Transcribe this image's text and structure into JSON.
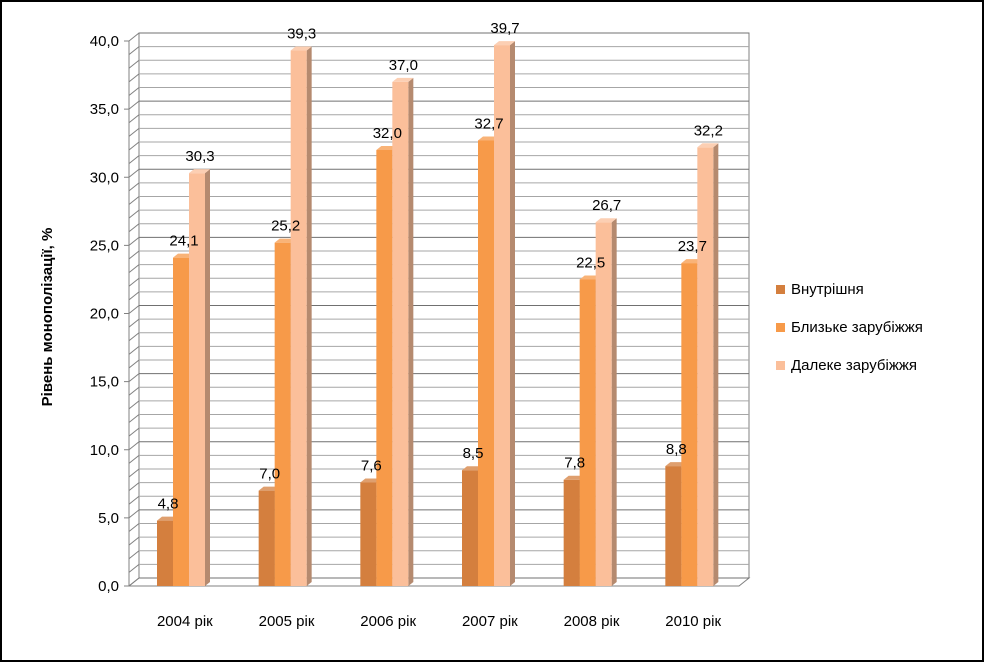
{
  "chart_data": {
    "type": "bar",
    "title": "",
    "xlabel": "",
    "ylabel": "Рівень монополізації, %",
    "ylim": [
      0,
      40
    ],
    "y_ticks": [
      "0,0",
      "5,0",
      "10,0",
      "15,0",
      "20,0",
      "25,0",
      "30,0",
      "35,0",
      "40,0"
    ],
    "categories": [
      "2004 рік",
      "2005 рік",
      "2006 рік",
      "2007 рік",
      "2008 рік",
      "2010 рік"
    ],
    "series": [
      {
        "name": "Внутрішня",
        "color": "#d47f3e",
        "values": [
          4.8,
          7.0,
          7.6,
          8.5,
          7.8,
          8.8
        ],
        "labels": [
          "4,8",
          "7,0",
          "7,6",
          "8,5",
          "7,8",
          "8,8"
        ]
      },
      {
        "name": "Близьке зарубіжжя",
        "color": "#f79a49",
        "values": [
          24.1,
          25.2,
          32.0,
          32.7,
          22.5,
          23.7
        ],
        "labels": [
          "24,1",
          "25,2",
          "32,0",
          "32,7",
          "22,5",
          "23,7"
        ]
      },
      {
        "name": "Далеке зарубіжжя",
        "color": "#fbbf9a",
        "values": [
          30.3,
          39.3,
          37.0,
          39.7,
          26.7,
          32.2
        ],
        "labels": [
          "30,3",
          "39,3",
          "37,0",
          "39,7",
          "26,7",
          "32,2"
        ]
      }
    ],
    "grid": true,
    "legend_position": "right"
  }
}
